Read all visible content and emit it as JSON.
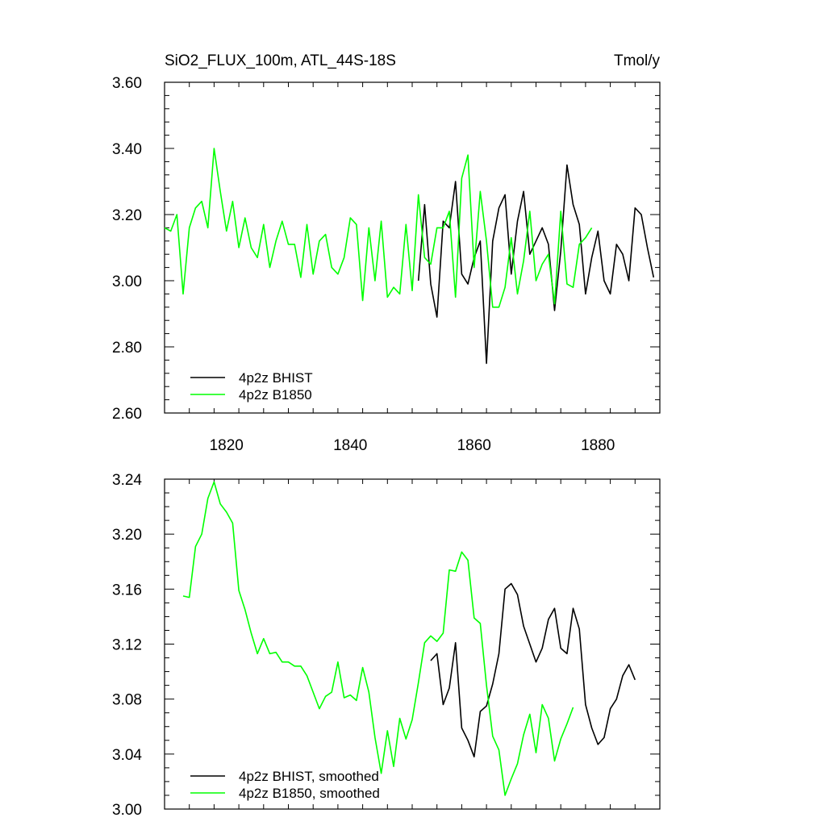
{
  "chart_data": [
    {
      "type": "line",
      "title": "SiO2_FLUX_100m, ATL_44S-18S",
      "units": "Tmol/y",
      "xlim": [
        1810,
        1890
      ],
      "ylim": [
        2.6,
        3.6
      ],
      "x_ticks": [
        "1820",
        "1840",
        "1860",
        "1880"
      ],
      "y_ticks": [
        "2.60",
        "2.80",
        "3.00",
        "3.20",
        "3.40",
        "3.60"
      ],
      "legend_position": "bottom-left",
      "series": [
        {
          "name": "4p2z BHIST",
          "color": "#000000",
          "x": [
            1851,
            1852,
            1853,
            1854,
            1855,
            1856,
            1857,
            1858,
            1859,
            1860,
            1861,
            1862,
            1863,
            1864,
            1865,
            1866,
            1867,
            1868,
            1869,
            1870,
            1871,
            1872,
            1873,
            1874,
            1875,
            1876,
            1877,
            1878,
            1879,
            1880,
            1881,
            1882,
            1883,
            1884,
            1885,
            1886,
            1887,
            1888,
            1889
          ],
          "y": [
            3.0,
            3.23,
            2.99,
            2.89,
            3.18,
            3.16,
            3.3,
            3.02,
            2.99,
            3.07,
            3.12,
            2.75,
            3.12,
            3.22,
            3.26,
            3.02,
            3.18,
            3.27,
            3.08,
            3.12,
            3.16,
            3.11,
            2.91,
            3.09,
            3.35,
            3.23,
            3.17,
            2.96,
            3.07,
            3.15,
            3.0,
            2.96,
            3.11,
            3.08,
            3.0,
            3.22,
            3.2,
            3.1,
            3.01
          ]
        },
        {
          "name": "4p2z B1850",
          "color": "#00ff00",
          "x": [
            1810,
            1811,
            1812,
            1813,
            1814,
            1815,
            1816,
            1817,
            1818,
            1819,
            1820,
            1821,
            1822,
            1823,
            1824,
            1825,
            1826,
            1827,
            1828,
            1829,
            1830,
            1831,
            1832,
            1833,
            1834,
            1835,
            1836,
            1837,
            1838,
            1839,
            1840,
            1841,
            1842,
            1843,
            1844,
            1845,
            1846,
            1847,
            1848,
            1849,
            1850,
            1851,
            1852,
            1853,
            1854,
            1855,
            1856,
            1857,
            1858,
            1859,
            1860,
            1861,
            1862,
            1863,
            1864,
            1865,
            1866,
            1867,
            1868,
            1869,
            1870,
            1871,
            1872,
            1873,
            1874,
            1875,
            1876,
            1877,
            1878,
            1879
          ],
          "y": [
            3.16,
            3.15,
            3.2,
            2.96,
            3.16,
            3.22,
            3.24,
            3.16,
            3.4,
            3.27,
            3.15,
            3.24,
            3.1,
            3.19,
            3.1,
            3.07,
            3.17,
            3.04,
            3.12,
            3.18,
            3.11,
            3.11,
            3.01,
            3.17,
            3.02,
            3.12,
            3.14,
            3.04,
            3.02,
            3.07,
            3.19,
            3.17,
            2.94,
            3.16,
            3.0,
            3.18,
            2.95,
            2.98,
            2.96,
            3.17,
            2.97,
            3.26,
            3.07,
            3.05,
            3.16,
            3.16,
            3.21,
            2.95,
            3.31,
            3.38,
            3.04,
            3.27,
            3.12,
            2.92,
            2.92,
            2.98,
            3.13,
            2.96,
            3.06,
            3.21,
            3.0,
            3.05,
            3.08,
            2.93,
            3.21,
            2.99,
            2.98,
            3.11,
            3.13,
            3.16
          ]
        }
      ]
    },
    {
      "type": "line",
      "title": "",
      "xlim": [
        1810,
        1890
      ],
      "ylim": [
        3.0,
        3.24
      ],
      "x_ticks": [],
      "y_ticks": [
        "3.00",
        "3.04",
        "3.08",
        "3.12",
        "3.16",
        "3.20",
        "3.24"
      ],
      "legend_position": "bottom-left",
      "series": [
        {
          "name": "4p2z BHIST, smoothed",
          "color": "#000000",
          "x": [
            1853,
            1854,
            1855,
            1856,
            1857,
            1858,
            1859,
            1860,
            1861,
            1862,
            1863,
            1864,
            1865,
            1866,
            1867,
            1868,
            1869,
            1870,
            1871,
            1872,
            1873,
            1874,
            1875,
            1876,
            1877,
            1878,
            1879,
            1880,
            1881,
            1882,
            1883,
            1884,
            1885,
            1886
          ],
          "y": [
            3.108,
            3.113,
            3.076,
            3.088,
            3.121,
            3.059,
            3.05,
            3.038,
            3.071,
            3.075,
            3.091,
            3.113,
            3.16,
            3.164,
            3.156,
            3.133,
            3.12,
            3.107,
            3.117,
            3.138,
            3.146,
            3.117,
            3.113,
            3.146,
            3.131,
            3.076,
            3.059,
            3.047,
            3.052,
            3.073,
            3.08,
            3.097,
            3.105,
            3.094
          ]
        },
        {
          "name": "4p2z B1850, smoothed",
          "color": "#00ff00",
          "x": [
            1813,
            1814,
            1815,
            1816,
            1817,
            1818,
            1819,
            1820,
            1821,
            1822,
            1823,
            1824,
            1825,
            1826,
            1827,
            1828,
            1829,
            1830,
            1831,
            1832,
            1833,
            1834,
            1835,
            1836,
            1837,
            1838,
            1839,
            1840,
            1841,
            1842,
            1843,
            1844,
            1845,
            1846,
            1847,
            1848,
            1849,
            1850,
            1851,
            1852,
            1853,
            1854,
            1855,
            1856,
            1857,
            1858,
            1859,
            1860,
            1861,
            1862,
            1863,
            1864,
            1865,
            1866,
            1867,
            1868,
            1869,
            1870,
            1871,
            1872,
            1873,
            1874,
            1875,
            1876
          ],
          "y": [
            3.155,
            3.154,
            3.191,
            3.2,
            3.226,
            3.238,
            3.222,
            3.216,
            3.208,
            3.159,
            3.145,
            3.128,
            3.113,
            3.124,
            3.113,
            3.114,
            3.107,
            3.107,
            3.104,
            3.104,
            3.097,
            3.085,
            3.073,
            3.082,
            3.085,
            3.107,
            3.081,
            3.083,
            3.079,
            3.103,
            3.085,
            3.052,
            3.026,
            3.057,
            3.031,
            3.066,
            3.051,
            3.065,
            3.092,
            3.121,
            3.126,
            3.122,
            3.128,
            3.174,
            3.173,
            3.187,
            3.181,
            3.139,
            3.135,
            3.09,
            3.053,
            3.043,
            3.01,
            3.022,
            3.033,
            3.054,
            3.069,
            3.041,
            3.076,
            3.066,
            3.035,
            3.051,
            3.062,
            3.074
          ]
        }
      ]
    }
  ]
}
